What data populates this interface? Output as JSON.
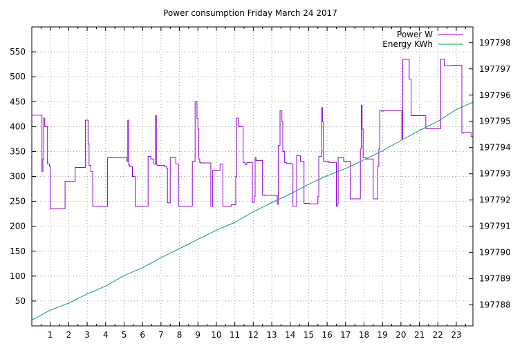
{
  "colors": {
    "power": "#9400d3",
    "energy": "#009e73",
    "grid": "#a0a0a0",
    "axis": "#000000"
  },
  "chart_data": {
    "type": "line",
    "title": "Power consumption Friday March 24 2017",
    "xlabel": "",
    "ylabel": "",
    "y2label": "",
    "grid": true,
    "legend_position": "top-right",
    "xlim": [
      0,
      23.9
    ],
    "xticks": [
      1,
      2,
      3,
      4,
      5,
      6,
      7,
      8,
      9,
      10,
      11,
      12,
      13,
      14,
      15,
      16,
      17,
      18,
      19,
      20,
      21,
      22,
      23
    ],
    "ylim": [
      0,
      600
    ],
    "yticks": [
      50,
      100,
      150,
      200,
      250,
      300,
      350,
      400,
      450,
      500,
      550
    ],
    "y2lim": [
      197787.2,
      197798.6
    ],
    "y2ticks": [
      197788,
      197789,
      197790,
      197791,
      197792,
      197793,
      197794,
      197795,
      197796,
      197797,
      197798
    ],
    "series": [
      {
        "name": "Power W",
        "axis": "y",
        "step": true,
        "x": [
          0,
          0.55,
          0.6,
          0.65,
          0.7,
          0.85,
          0.95,
          1.0,
          1.8,
          2.35,
          2.9,
          3.05,
          3.1,
          3.2,
          3.3,
          4.1,
          5.15,
          5.2,
          5.25,
          5.3,
          5.45,
          5.6,
          6.3,
          6.45,
          6.6,
          6.7,
          6.75,
          6.8,
          7.2,
          7.3,
          7.35,
          7.5,
          7.8,
          7.95,
          8.7,
          8.85,
          8.95,
          9.0,
          9.05,
          9.1,
          9.15,
          9.7,
          9.8,
          10.2,
          10.35,
          10.45,
          10.8,
          11.05,
          11.1,
          11.2,
          11.45,
          11.55,
          11.65,
          11.95,
          12.05,
          12.1,
          12.15,
          12.5,
          12.6,
          12.65,
          13.3,
          13.35,
          13.45,
          13.55,
          13.6,
          13.7,
          13.8,
          14.05,
          14.15,
          14.35,
          14.55,
          14.75,
          15.05,
          15.5,
          15.55,
          15.7,
          15.75,
          15.8,
          16.1,
          16.5,
          16.55,
          16.6,
          16.9,
          17.25,
          17.8,
          17.85,
          17.9,
          17.95,
          18.1,
          18.5,
          18.75,
          18.8,
          18.85,
          18.95,
          19.05,
          19.2,
          20.05,
          20.1,
          20.15,
          20.35,
          20.45,
          20.55,
          20.6,
          21.35,
          22.05,
          22.15,
          22.35,
          22.5,
          22.75,
          23.3,
          23.4,
          23.8
        ],
        "y": [
          423,
          310,
          335,
          417,
          400,
          325,
          320,
          235,
          290,
          318,
          413,
          365,
          322,
          310,
          240,
          338,
          330,
          413,
          323,
          320,
          300,
          240,
          340,
          335,
          325,
          422,
          323,
          322,
          320,
          316,
          247,
          338,
          325,
          240,
          330,
          450,
          416,
          395,
          335,
          328,
          327,
          240,
          312,
          325,
          240,
          240,
          243,
          300,
          417,
          400,
          328,
          324,
          328,
          248,
          260,
          338,
          332,
          262,
          263,
          262,
          244,
          362,
          432,
          410,
          350,
          328,
          326,
          325,
          240,
          342,
          330,
          246,
          245,
          260,
          340,
          438,
          410,
          330,
          328,
          240,
          245,
          338,
          330,
          255,
          355,
          443,
          395,
          338,
          335,
          255,
          320,
          355,
          433,
          431,
          432,
          432,
          375,
          535,
          535,
          535,
          495,
          422,
          422,
          396,
          396,
          535,
          522,
          522,
          523,
          387,
          388,
          380
        ]
      },
      {
        "name": "Energy KWh",
        "axis": "y2",
        "step": false,
        "x": [
          0,
          1,
          2,
          3,
          4,
          5,
          6,
          7,
          8,
          9,
          10,
          11,
          12,
          13,
          14,
          15,
          16,
          17,
          18,
          19,
          20,
          21,
          22,
          23,
          23.9
        ],
        "y": [
          197787.42,
          197787.8,
          197788.07,
          197788.42,
          197788.72,
          197789.12,
          197789.42,
          197789.8,
          197790.15,
          197790.5,
          197790.85,
          197791.15,
          197791.55,
          197791.9,
          197792.23,
          197792.6,
          197792.93,
          197793.2,
          197793.53,
          197793.88,
          197794.27,
          197794.65,
          197795.0,
          197795.45,
          197795.73
        ]
      }
    ]
  }
}
